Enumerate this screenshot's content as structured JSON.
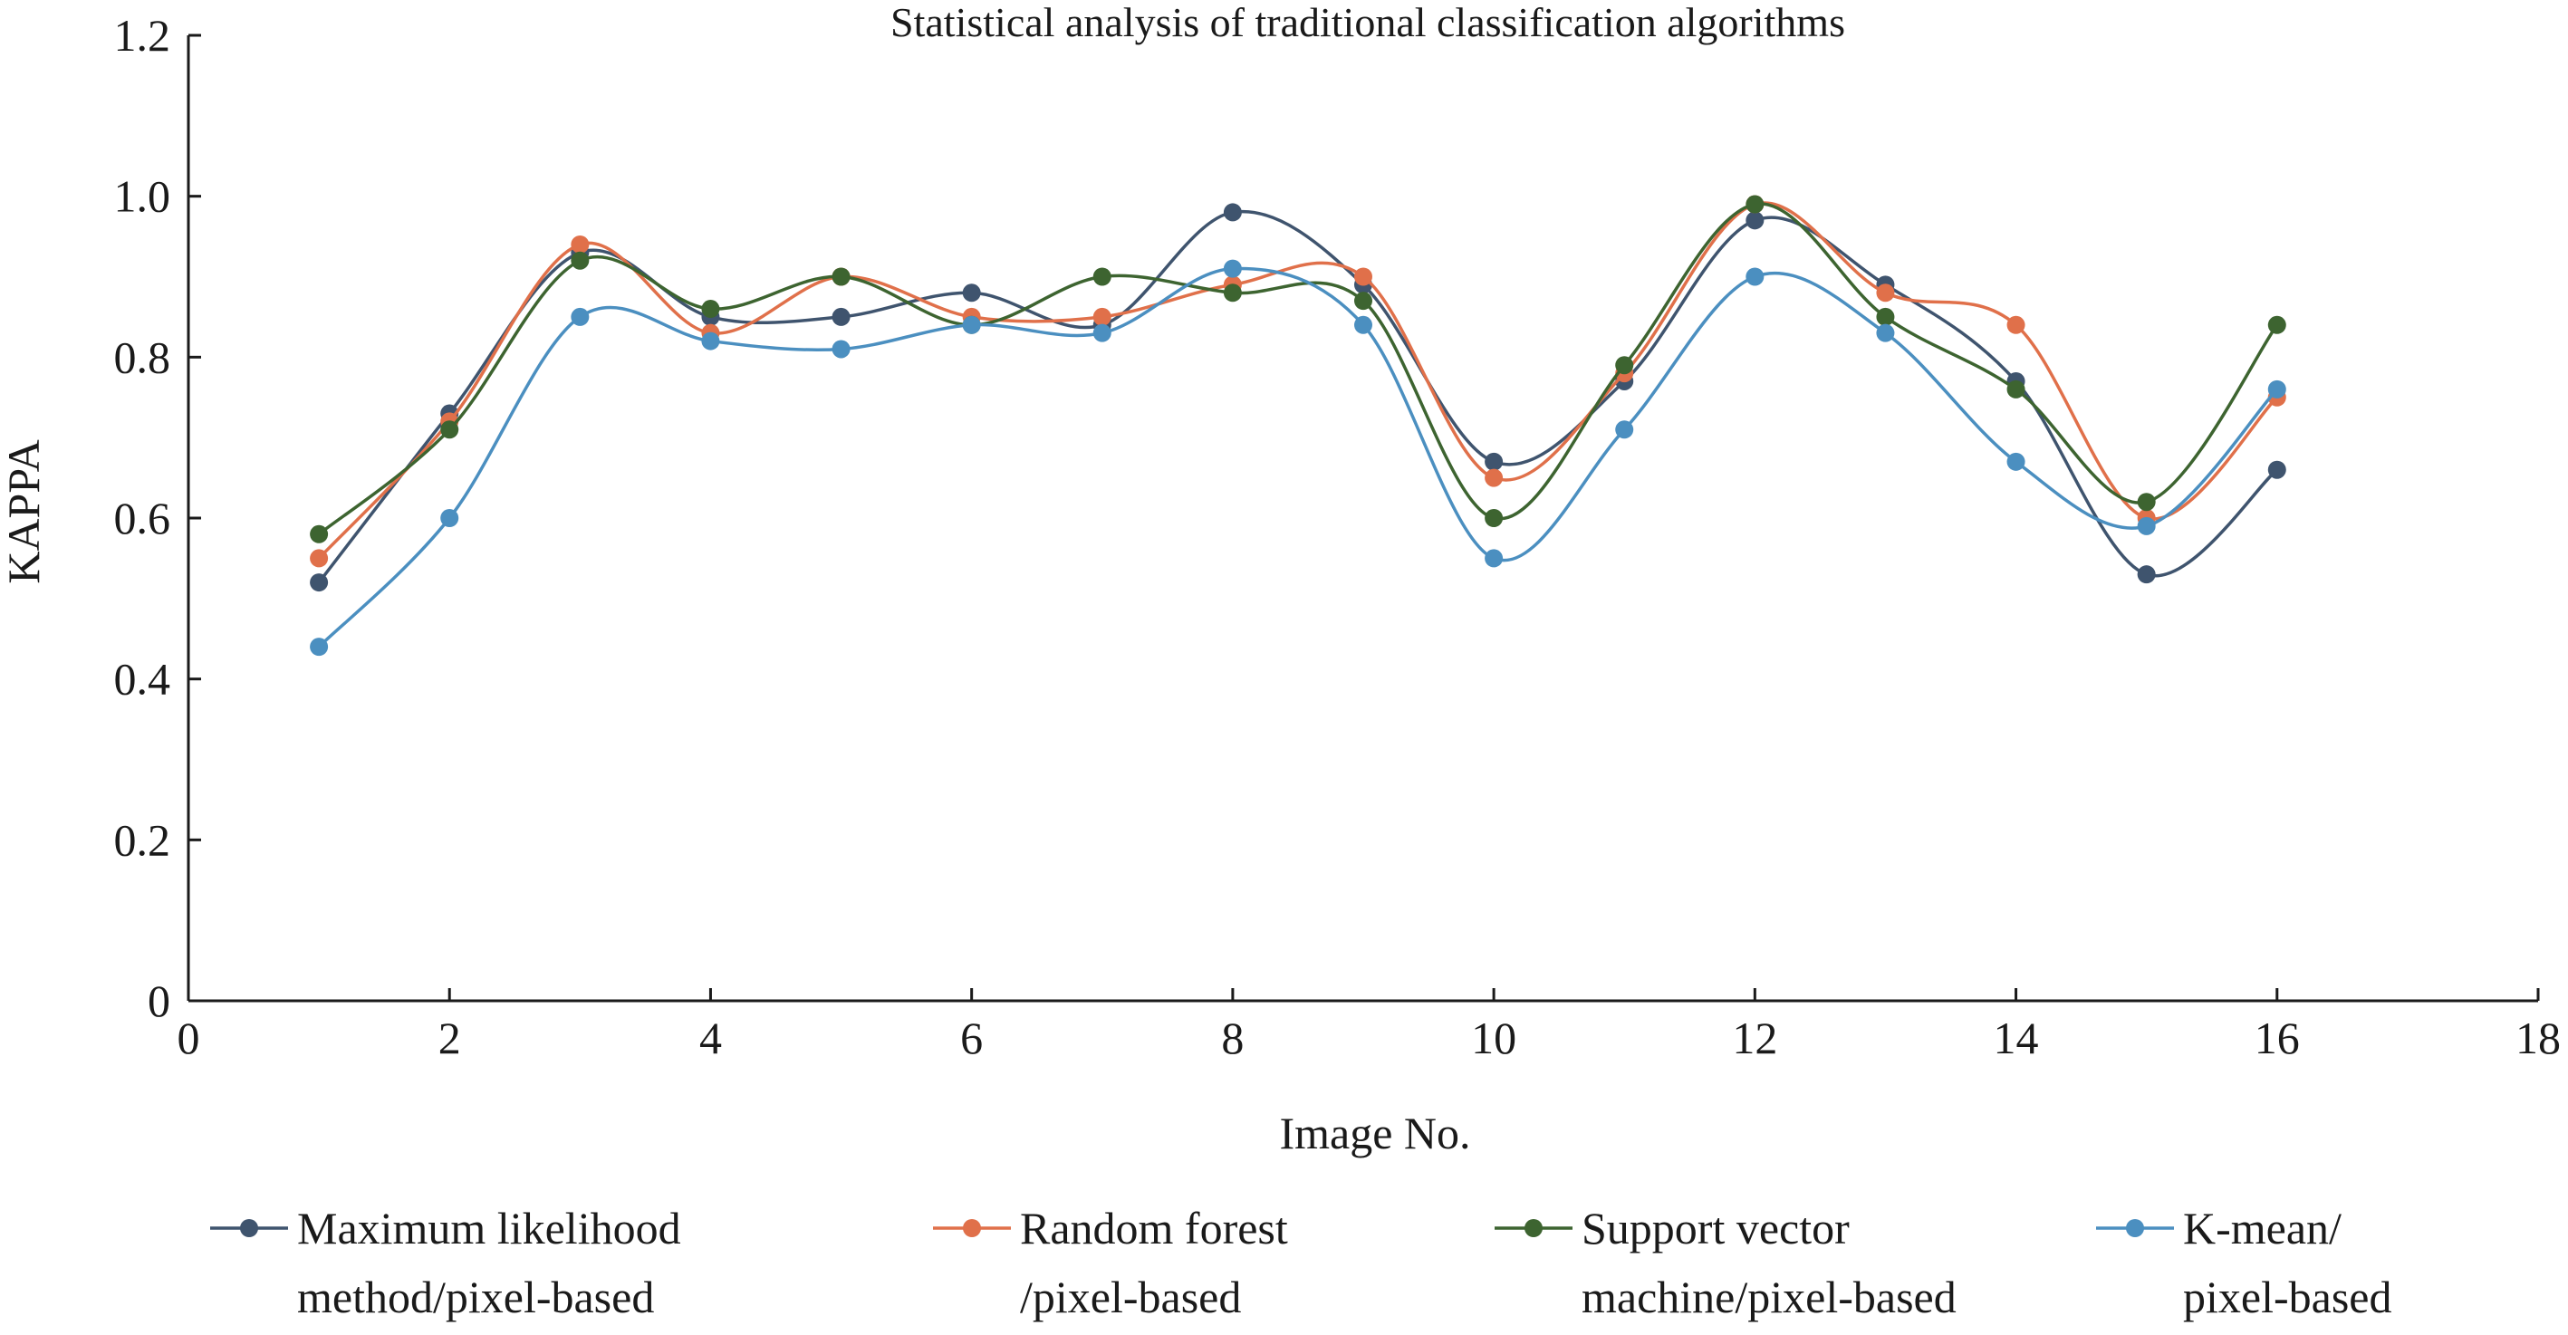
{
  "chart_data": {
    "type": "line",
    "title": "Statistical analysis of traditional classification algorithms",
    "xlabel": "Image No.",
    "ylabel": "KAPPA",
    "xlim": [
      0,
      18
    ],
    "ylim": [
      0,
      1.2
    ],
    "x_ticks": [
      0,
      2,
      4,
      6,
      8,
      10,
      12,
      14,
      16,
      18
    ],
    "y_ticks": [
      0,
      0.2,
      0.4,
      0.6,
      0.8,
      1.0,
      1.2
    ],
    "y_tick_labels": [
      "0",
      "0.2",
      "0.4",
      "0.6",
      "0.8",
      "1.0",
      "1.2"
    ],
    "grid": false,
    "legend_position": "bottom",
    "x": [
      1,
      2,
      3,
      4,
      5,
      6,
      7,
      8,
      9,
      10,
      11,
      12,
      13,
      14,
      15,
      16
    ],
    "series": [
      {
        "name": "Maximum likelihood method/pixel-based",
        "legend_lines": [
          "Maximum likelihood",
          "method/pixel-based"
        ],
        "color": "#3f546e",
        "values": [
          0.52,
          0.73,
          0.93,
          0.85,
          0.85,
          0.88,
          0.84,
          0.98,
          0.89,
          0.67,
          0.77,
          0.97,
          0.89,
          0.77,
          0.53,
          0.66
        ]
      },
      {
        "name": "Random forest /pixel-based",
        "legend_lines": [
          "Random forest",
          "/pixel-based"
        ],
        "color": "#e0704a",
        "values": [
          0.55,
          0.72,
          0.94,
          0.83,
          0.9,
          0.85,
          0.85,
          0.89,
          0.9,
          0.65,
          0.78,
          0.99,
          0.88,
          0.84,
          0.6,
          0.75
        ]
      },
      {
        "name": "Support vector machine/pixel-based",
        "legend_lines": [
          "Support vector",
          "machine/pixel-based"
        ],
        "color": "#3d6430",
        "values": [
          0.58,
          0.71,
          0.92,
          0.86,
          0.9,
          0.84,
          0.9,
          0.88,
          0.87,
          0.6,
          0.79,
          0.99,
          0.85,
          0.76,
          0.62,
          0.84
        ]
      },
      {
        "name": "K-mean/ pixel-based",
        "legend_lines": [
          "K-mean/",
          "pixel-based"
        ],
        "color": "#4b8fc0",
        "values": [
          0.44,
          0.6,
          0.85,
          0.82,
          0.81,
          0.84,
          0.83,
          0.91,
          0.84,
          0.55,
          0.71,
          0.9,
          0.83,
          0.67,
          0.59,
          0.76
        ]
      }
    ]
  }
}
